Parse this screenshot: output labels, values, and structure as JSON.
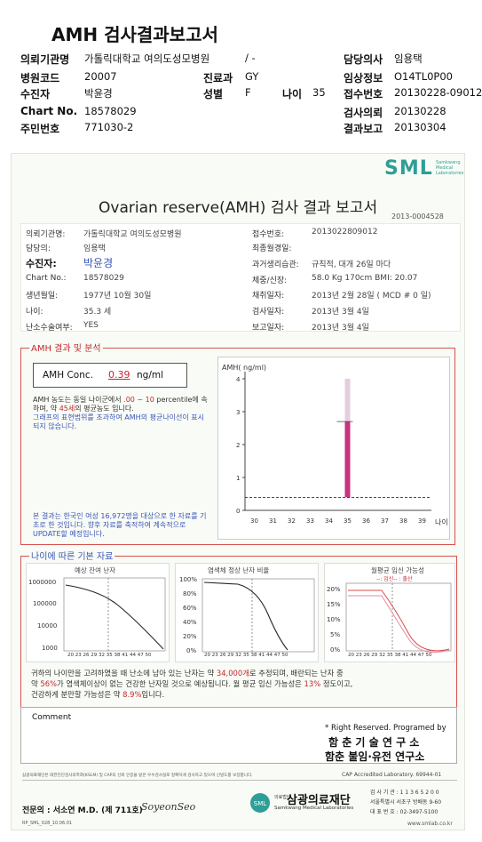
{
  "header": {
    "title": "AMH 검사결과보고서",
    "rows": [
      {
        "l1": "의뢰기관명",
        "v1": "가톨릭대학교 여의도성모병원",
        "l2": "",
        "v2": "/ -",
        "l3": "담당의사",
        "v3": "임용택"
      },
      {
        "l1": "병원코드",
        "v1": "20007",
        "l2": "진료과",
        "v2": "GY",
        "l3": "임상정보",
        "v3": "O14TL0P00"
      },
      {
        "l1": "수진자",
        "v1": "박윤경",
        "l2": "성별",
        "v2": "F",
        "lx": "나이",
        "vx": "35",
        "l3": "접수번호",
        "v3": "20130228-09012"
      },
      {
        "l1": "Chart No.",
        "v1": "18578029",
        "l2": "",
        "v2": "",
        "l3": "검사의뢰",
        "v3": "20130228"
      },
      {
        "l1": "주민번호",
        "v1": "771030-2",
        "l2": "",
        "v2": "",
        "l3": "결과보고",
        "v3": "20130304"
      }
    ]
  },
  "report": {
    "logo": "SML",
    "logo_sub1": "Samkwang",
    "logo_sub2": "Medical",
    "logo_sub3": "Laboratories",
    "title": "Ovarian reserve(AMH) 검사 결과 보고서",
    "doc_no": "2013-0004528",
    "left": [
      {
        "label": "의뢰기관명:",
        "value": "가톨릭대학교 여의도성모병원"
      },
      {
        "label": "담당의:",
        "value": "임용택"
      },
      {
        "label": "수진자:",
        "value": "박윤경"
      },
      {
        "label": "Chart No.:",
        "value": "18578029"
      },
      {
        "label": "생년월일:",
        "value": "1977년 10월 30일"
      },
      {
        "label": "나이:",
        "value": "35.3 세"
      },
      {
        "label": "난소수술여부:",
        "value": "YES"
      }
    ],
    "right": [
      {
        "label": "접수번호:",
        "value": "2013022809012"
      },
      {
        "label": "최종월경일:",
        "value": ""
      },
      {
        "label": "과거생리습관:",
        "value": "규칙적,  대개  26일 마다"
      },
      {
        "label": "체중/신장:",
        "value": "58.0 Kg    170cm    BMI: 20.07"
      },
      {
        "label": "채취일자:",
        "value": "2013년 2월 28일   ( MCD # 0 일)"
      },
      {
        "label": "검사일자:",
        "value": "2013년 3월 4일"
      },
      {
        "label": "보고일자:",
        "value": "2013년 3월 4일"
      }
    ],
    "amh_section_title": "AMH 결과 및 분석",
    "amh_label": "AMH Conc.",
    "amh_value": "0.39",
    "amh_unit": "ng/ml",
    "analysis_p1a": "AMH 농도는 동일 나이군에서",
    "analysis_p1b": ".00 ~ 10",
    "analysis_p1c": "percentile에 속하며, 약",
    "analysis_p1d": "45세",
    "analysis_p1e": "의 평균농도",
    "analysis_p1f": "입니다.",
    "analysis_p2": "그래프의 표현범위를 초과하여 AMH의 평균나이선이 표시되지 않습니다.",
    "note_p": "본 결과는 한국인 여성 16,972명을 대상으로 한 자료를 기초로 한 것입니다. 향후 자료를 축적하여 계속적으로 UPDATE할 예정입니다.",
    "age_section_title": "나이에 따른 기본 자료",
    "mini1_title": "예상 잔여 난자",
    "mini2_title": "염색체 정상 난자 비율",
    "mini3_title": "월평균 임신 가능성",
    "mini3_legend_a": "--: 임신--",
    "mini3_legend_b": ": 출산",
    "mini_x": "20 23 26 29 32 35 38 41 44 47 50",
    "mini1_y": [
      "1000000",
      "100000",
      "10000",
      "1000"
    ],
    "mini2_y": [
      "100%",
      "80%",
      "60%",
      "40%",
      "20%",
      "0%"
    ],
    "mini3_y": [
      "20%",
      "15%",
      "10%",
      "5%",
      "0%"
    ],
    "summary1a": "귀하의 나이만을 고려하였을 때 난소에 남아 있는 난자는 약",
    "summary1b": "34,000개",
    "summary1c": "로 추정되며, 배란되는 난자 중",
    "summary2a": "약",
    "summary2b": "56%",
    "summary2c": "가 염색체이상이 없는 건강한 난자일 것으로 예상됩니다. 월 평균 임신 가능성은",
    "summary2d": "13%",
    "summary2e": "정도이고,",
    "summary3a": "건강하게 분만할 가능성은 약",
    "summary3b": "8.9%",
    "summary3c": "입니다.",
    "comment_label": "Comment",
    "rights": "* Right Reserved. Programed by",
    "lab1": "함 춘  기 술  연 구 소",
    "lab2": "함춘 불임·유전 연구소",
    "footer_fine": "삼광의료재단은 대한진단검사의학회(KSLM) 및 CAP의 신뢰 인증을 받은 우수검사실로 정확하게 검사하고 있으며 신빙도를 보장합니다.",
    "cap": "CAP  Accredited  Laboratory.  69944-01",
    "specialist": "전문의 : 서소연 M.D. (제 711호)",
    "signature": "SoyeonSeo",
    "foundation_small": "의료법인",
    "foundation": "삼광의료재단",
    "foundation_en": "Samkwang Medical Laboratories",
    "addr1": "검 사 기 관 : 1 1 3 6 5 2 0 0",
    "addr2": "서울특별시 서초구 방배동 9-60",
    "addr3": "대 표 번 호 : 02-3497-5100",
    "form_code": "RP_SML_028_10.06.01",
    "website": "www.smlab.co.kr"
  },
  "chart_data": {
    "type": "bar",
    "ylabel": "AMH( ng/ml)",
    "xlabel": "나이",
    "categories": [
      30,
      31,
      32,
      33,
      34,
      35,
      36,
      37,
      38,
      39
    ],
    "yticks": [
      0,
      1,
      2,
      3,
      4
    ],
    "ylim": [
      0,
      4
    ],
    "bars": [
      {
        "x": 35,
        "value": 2.7,
        "range": [
          0.4,
          4
        ],
        "color": "#c8337e"
      }
    ],
    "reference_line": 0.39
  },
  "colors": {
    "accent_red": "#c4262c",
    "accent_blue": "#3b55b8",
    "logo_teal": "#2f9e96"
  }
}
